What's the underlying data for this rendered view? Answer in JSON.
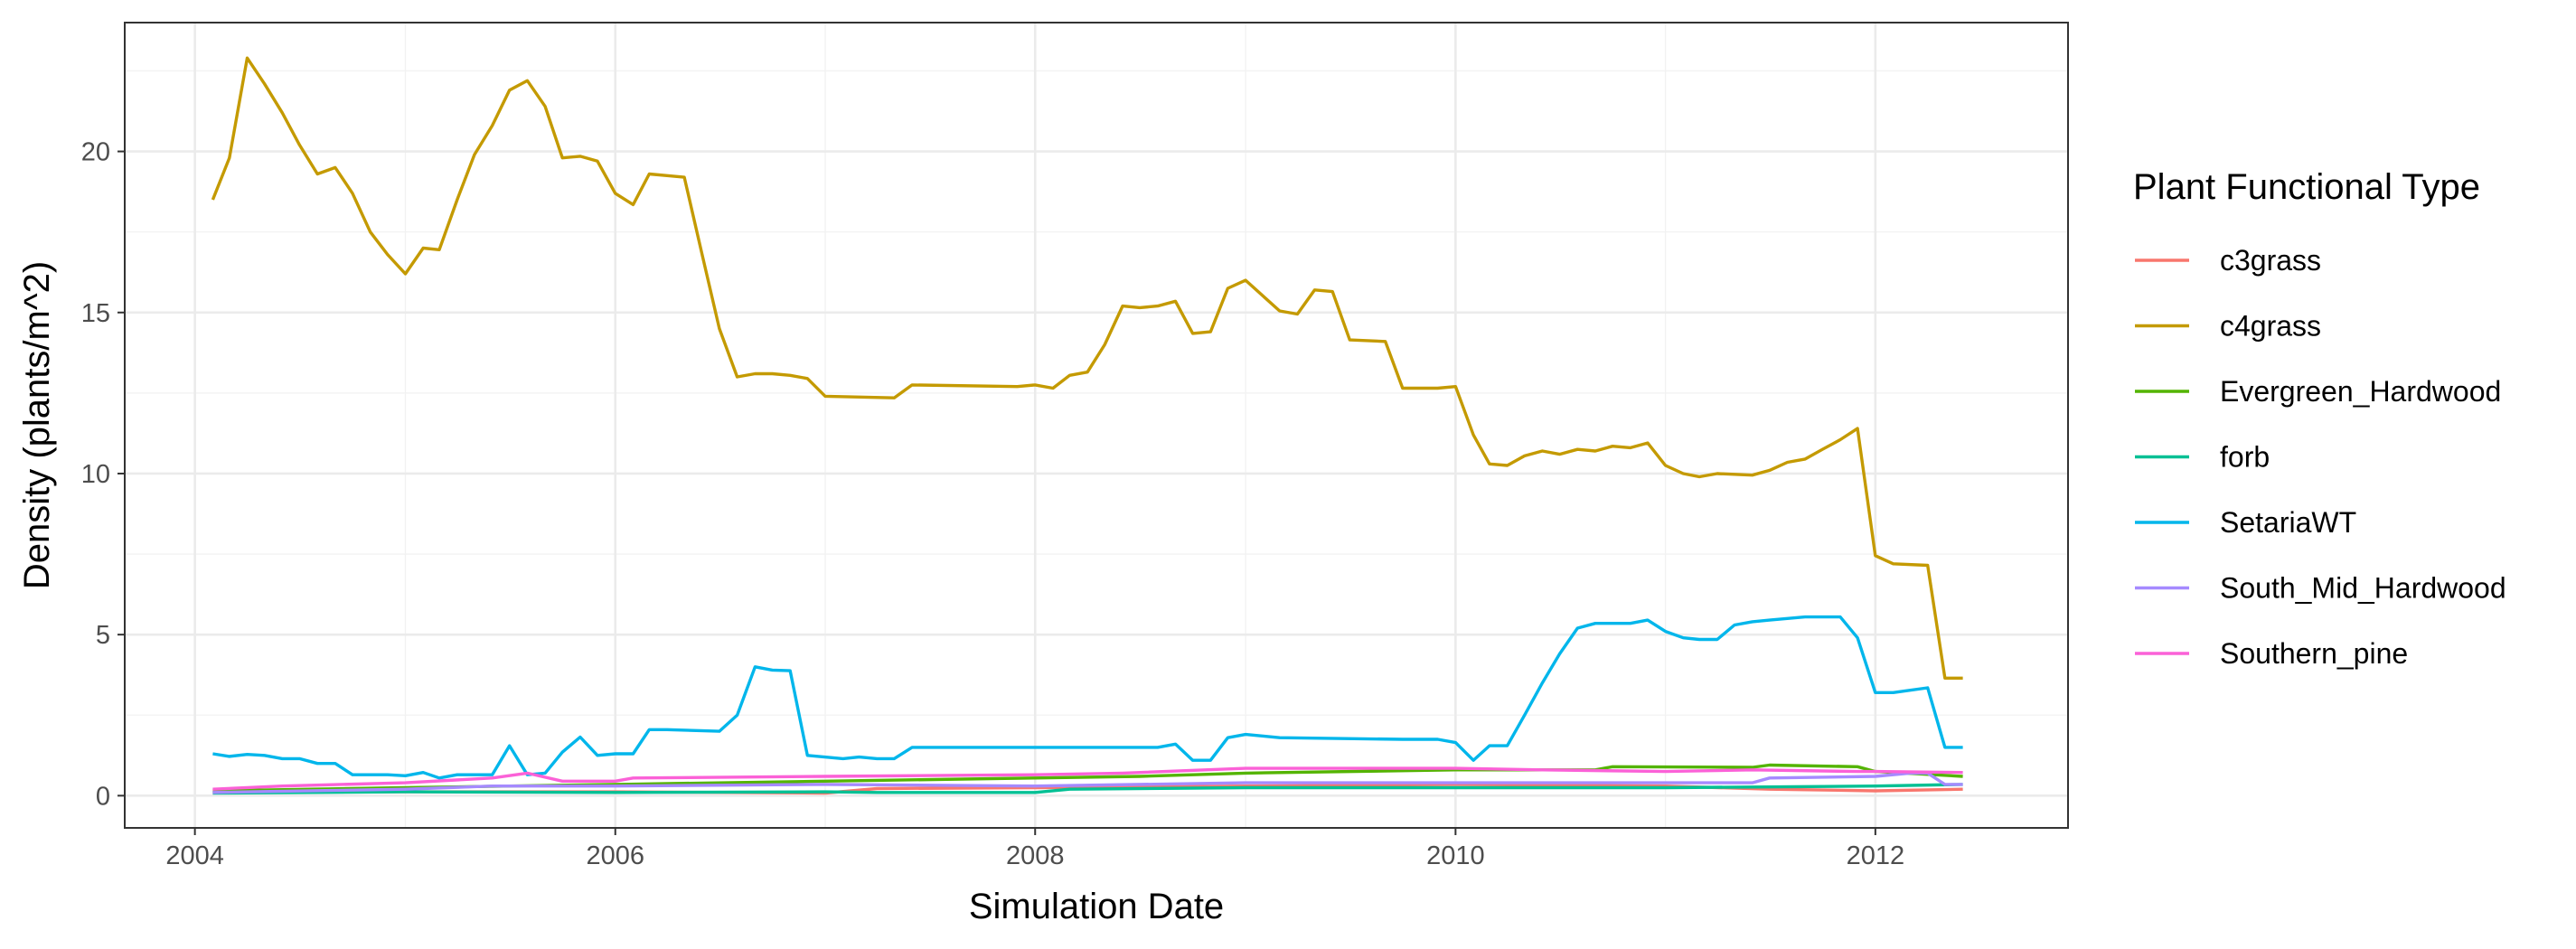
{
  "chart_data": {
    "type": "line",
    "xlabel": "Simulation Date",
    "ylabel": "Density (plants/m^2)",
    "x_ticks": [
      "2004",
      "2006",
      "2008",
      "2010",
      "2012"
    ],
    "y_ticks": [
      "0",
      "5",
      "10",
      "15",
      "20"
    ],
    "xlim": [
      "2003-09-01",
      "2012-12-01"
    ],
    "ylim": [
      -1.0,
      24.0
    ],
    "grid": true,
    "legend_position": "right",
    "legend_title": "Plant Functional Type",
    "series": [
      {
        "name": "c3grass",
        "color": "#F8766D",
        "points": [
          [
            "2004-02-01",
            0.1
          ],
          [
            "2005-01-01",
            0.12
          ],
          [
            "2006-01-01",
            0.12
          ],
          [
            "2007-01-01",
            0.08
          ],
          [
            "2007-04-01",
            0.22
          ],
          [
            "2008-01-01",
            0.25
          ],
          [
            "2009-01-01",
            0.3
          ],
          [
            "2010-01-01",
            0.35
          ],
          [
            "2011-01-01",
            0.3
          ],
          [
            "2011-07-01",
            0.2
          ],
          [
            "2012-01-01",
            0.15
          ],
          [
            "2012-06-01",
            0.2
          ]
        ]
      },
      {
        "name": "c4grass",
        "color": "#C49A00",
        "points": [
          [
            "2004-02-01",
            18.5
          ],
          [
            "2004-03-01",
            19.8
          ],
          [
            "2004-04-01",
            22.9
          ],
          [
            "2004-05-01",
            22.1
          ],
          [
            "2004-06-01",
            21.2
          ],
          [
            "2004-07-01",
            20.2
          ],
          [
            "2004-08-01",
            19.3
          ],
          [
            "2004-09-01",
            19.5
          ],
          [
            "2004-10-01",
            18.7
          ],
          [
            "2004-11-01",
            17.5
          ],
          [
            "2004-12-01",
            16.8
          ],
          [
            "2005-01-01",
            16.2
          ],
          [
            "2005-02-01",
            17.0
          ],
          [
            "2005-03-01",
            16.95
          ],
          [
            "2005-04-01",
            18.5
          ],
          [
            "2005-05-01",
            19.9
          ],
          [
            "2005-06-01",
            20.8
          ],
          [
            "2005-07-01",
            21.9
          ],
          [
            "2005-08-01",
            22.2
          ],
          [
            "2005-09-01",
            21.4
          ],
          [
            "2005-10-01",
            19.8
          ],
          [
            "2005-11-01",
            19.85
          ],
          [
            "2005-12-01",
            19.7
          ],
          [
            "2006-01-01",
            18.7
          ],
          [
            "2006-02-01",
            18.35
          ],
          [
            "2006-03-01",
            19.3
          ],
          [
            "2006-04-01",
            19.25
          ],
          [
            "2006-05-01",
            19.2
          ],
          [
            "2006-06-01",
            16.8
          ],
          [
            "2006-07-01",
            14.5
          ],
          [
            "2006-08-01",
            13.0
          ],
          [
            "2006-09-01",
            13.1
          ],
          [
            "2006-10-01",
            13.1
          ],
          [
            "2006-11-01",
            13.05
          ],
          [
            "2006-12-01",
            12.95
          ],
          [
            "2007-01-01",
            12.4
          ],
          [
            "2007-05-01",
            12.35
          ],
          [
            "2007-06-01",
            12.75
          ],
          [
            "2007-12-01",
            12.7
          ],
          [
            "2008-01-01",
            12.75
          ],
          [
            "2008-02-01",
            12.65
          ],
          [
            "2008-03-01",
            13.05
          ],
          [
            "2008-04-01",
            13.15
          ],
          [
            "2008-05-01",
            14.0
          ],
          [
            "2008-06-01",
            15.2
          ],
          [
            "2008-07-01",
            15.15
          ],
          [
            "2008-08-01",
            15.2
          ],
          [
            "2008-09-01",
            15.35
          ],
          [
            "2008-10-01",
            14.35
          ],
          [
            "2008-11-01",
            14.4
          ],
          [
            "2008-12-01",
            15.75
          ],
          [
            "2009-01-01",
            16.0
          ],
          [
            "2009-02-01",
            15.5
          ],
          [
            "2009-03-01",
            15.05
          ],
          [
            "2009-04-01",
            14.95
          ],
          [
            "2009-05-01",
            15.7
          ],
          [
            "2009-06-01",
            15.65
          ],
          [
            "2009-07-01",
            14.15
          ],
          [
            "2009-09-01",
            14.1
          ],
          [
            "2009-10-01",
            12.65
          ],
          [
            "2009-12-01",
            12.65
          ],
          [
            "2010-01-01",
            12.7
          ],
          [
            "2010-02-01",
            11.2
          ],
          [
            "2010-03-01",
            10.3
          ],
          [
            "2010-04-01",
            10.25
          ],
          [
            "2010-05-01",
            10.55
          ],
          [
            "2010-06-01",
            10.7
          ],
          [
            "2010-07-01",
            10.6
          ],
          [
            "2010-08-01",
            10.75
          ],
          [
            "2010-09-01",
            10.7
          ],
          [
            "2010-10-01",
            10.85
          ],
          [
            "2010-11-01",
            10.8
          ],
          [
            "2010-12-01",
            10.95
          ],
          [
            "2011-01-01",
            10.25
          ],
          [
            "2011-02-01",
            10.0
          ],
          [
            "2011-03-01",
            9.9
          ],
          [
            "2011-04-01",
            10.0
          ],
          [
            "2011-06-01",
            9.95
          ],
          [
            "2011-07-01",
            10.1
          ],
          [
            "2011-08-01",
            10.35
          ],
          [
            "2011-09-01",
            10.45
          ],
          [
            "2011-10-01",
            10.75
          ],
          [
            "2011-11-01",
            11.05
          ],
          [
            "2011-12-01",
            11.4
          ],
          [
            "2012-01-01",
            7.45
          ],
          [
            "2012-02-01",
            7.2
          ],
          [
            "2012-04-01",
            7.15
          ],
          [
            "2012-05-01",
            3.65
          ],
          [
            "2012-06-01",
            3.65
          ]
        ]
      },
      {
        "name": "Evergreen_Hardwood",
        "color": "#53B400",
        "points": [
          [
            "2004-02-01",
            0.15
          ],
          [
            "2005-01-01",
            0.25
          ],
          [
            "2006-01-01",
            0.35
          ],
          [
            "2007-01-01",
            0.45
          ],
          [
            "2008-01-01",
            0.55
          ],
          [
            "2008-07-01",
            0.6
          ],
          [
            "2009-01-01",
            0.7
          ],
          [
            "2010-01-01",
            0.8
          ],
          [
            "2010-09-01",
            0.8
          ],
          [
            "2010-10-01",
            0.9
          ],
          [
            "2011-06-01",
            0.88
          ],
          [
            "2011-07-01",
            0.95
          ],
          [
            "2011-12-01",
            0.9
          ],
          [
            "2012-01-01",
            0.75
          ],
          [
            "2012-06-01",
            0.6
          ]
        ]
      },
      {
        "name": "forb",
        "color": "#00C094",
        "points": [
          [
            "2004-02-01",
            0.08
          ],
          [
            "2005-01-01",
            0.12
          ],
          [
            "2006-01-01",
            0.1
          ],
          [
            "2007-01-01",
            0.12
          ],
          [
            "2007-04-01",
            0.1
          ],
          [
            "2008-01-01",
            0.1
          ],
          [
            "2008-03-01",
            0.2
          ],
          [
            "2009-01-01",
            0.25
          ],
          [
            "2010-01-01",
            0.25
          ],
          [
            "2011-01-01",
            0.25
          ],
          [
            "2012-01-01",
            0.3
          ],
          [
            "2012-06-01",
            0.35
          ]
        ]
      },
      {
        "name": "SetariaWT",
        "color": "#00B6EB",
        "points": [
          [
            "2004-02-01",
            1.3
          ],
          [
            "2004-03-01",
            1.22
          ],
          [
            "2004-04-01",
            1.28
          ],
          [
            "2004-05-01",
            1.25
          ],
          [
            "2004-06-01",
            1.15
          ],
          [
            "2004-07-01",
            1.15
          ],
          [
            "2004-08-01",
            1.0
          ],
          [
            "2004-09-01",
            1.0
          ],
          [
            "2004-10-01",
            0.65
          ],
          [
            "2004-12-01",
            0.65
          ],
          [
            "2005-01-01",
            0.62
          ],
          [
            "2005-02-01",
            0.72
          ],
          [
            "2005-03-01",
            0.55
          ],
          [
            "2005-04-01",
            0.65
          ],
          [
            "2005-05-01",
            0.65
          ],
          [
            "2005-06-01",
            0.65
          ],
          [
            "2005-07-01",
            1.55
          ],
          [
            "2005-08-01",
            0.65
          ],
          [
            "2005-09-01",
            0.7
          ],
          [
            "2005-10-01",
            1.35
          ],
          [
            "2005-11-01",
            1.82
          ],
          [
            "2005-12-01",
            1.25
          ],
          [
            "2006-01-01",
            1.3
          ],
          [
            "2006-02-01",
            1.3
          ],
          [
            "2006-03-01",
            2.05
          ],
          [
            "2006-04-01",
            2.05
          ],
          [
            "2006-07-01",
            2.0
          ],
          [
            "2006-08-01",
            2.5
          ],
          [
            "2006-09-01",
            4.0
          ],
          [
            "2006-10-01",
            3.9
          ],
          [
            "2006-11-01",
            3.88
          ],
          [
            "2006-12-01",
            1.25
          ],
          [
            "2007-02-01",
            1.15
          ],
          [
            "2007-03-01",
            1.2
          ],
          [
            "2007-04-01",
            1.15
          ],
          [
            "2007-05-01",
            1.15
          ],
          [
            "2007-06-01",
            1.5
          ],
          [
            "2008-01-01",
            1.5
          ],
          [
            "2008-08-01",
            1.5
          ],
          [
            "2008-09-01",
            1.6
          ],
          [
            "2008-10-01",
            1.1
          ],
          [
            "2008-11-01",
            1.1
          ],
          [
            "2008-12-01",
            1.8
          ],
          [
            "2009-01-01",
            1.9
          ],
          [
            "2009-02-01",
            1.85
          ],
          [
            "2009-03-01",
            1.8
          ],
          [
            "2009-10-01",
            1.75
          ],
          [
            "2009-12-01",
            1.75
          ],
          [
            "2010-01-01",
            1.65
          ],
          [
            "2010-02-01",
            1.1
          ],
          [
            "2010-03-01",
            1.55
          ],
          [
            "2010-04-01",
            1.55
          ],
          [
            "2010-05-01",
            2.5
          ],
          [
            "2010-06-01",
            3.5
          ],
          [
            "2010-07-01",
            4.4
          ],
          [
            "2010-08-01",
            5.2
          ],
          [
            "2010-09-01",
            5.35
          ],
          [
            "2010-10-01",
            5.35
          ],
          [
            "2010-11-01",
            5.35
          ],
          [
            "2010-12-01",
            5.45
          ],
          [
            "2011-01-01",
            5.1
          ],
          [
            "2011-02-01",
            4.9
          ],
          [
            "2011-03-01",
            4.85
          ],
          [
            "2011-04-01",
            4.85
          ],
          [
            "2011-05-01",
            5.3
          ],
          [
            "2011-06-01",
            5.4
          ],
          [
            "2011-07-01",
            5.45
          ],
          [
            "2011-08-01",
            5.5
          ],
          [
            "2011-09-01",
            5.55
          ],
          [
            "2011-11-01",
            5.55
          ],
          [
            "2011-12-01",
            4.9
          ],
          [
            "2012-01-01",
            3.2
          ],
          [
            "2012-02-01",
            3.2
          ],
          [
            "2012-04-01",
            3.35
          ],
          [
            "2012-05-01",
            1.5
          ],
          [
            "2012-06-01",
            1.5
          ]
        ]
      },
      {
        "name": "South_Mid_Hardwood",
        "color": "#A58AFF",
        "points": [
          [
            "2004-02-01",
            0.1
          ],
          [
            "2005-01-01",
            0.2
          ],
          [
            "2005-06-01",
            0.3
          ],
          [
            "2006-01-01",
            0.3
          ],
          [
            "2007-01-01",
            0.35
          ],
          [
            "2008-01-01",
            0.3
          ],
          [
            "2009-01-01",
            0.4
          ],
          [
            "2010-01-01",
            0.4
          ],
          [
            "2011-01-01",
            0.4
          ],
          [
            "2011-06-01",
            0.4
          ],
          [
            "2011-07-01",
            0.55
          ],
          [
            "2012-01-01",
            0.6
          ],
          [
            "2012-03-01",
            0.7
          ],
          [
            "2012-04-01",
            0.7
          ],
          [
            "2012-05-01",
            0.35
          ],
          [
            "2012-06-01",
            0.35
          ]
        ]
      },
      {
        "name": "Southern_pine",
        "color": "#FB61D7",
        "points": [
          [
            "2004-02-01",
            0.2
          ],
          [
            "2004-06-01",
            0.3
          ],
          [
            "2005-01-01",
            0.4
          ],
          [
            "2005-06-01",
            0.55
          ],
          [
            "2005-08-01",
            0.7
          ],
          [
            "2005-10-01",
            0.45
          ],
          [
            "2006-01-01",
            0.45
          ],
          [
            "2006-02-01",
            0.55
          ],
          [
            "2007-01-01",
            0.6
          ],
          [
            "2008-01-01",
            0.65
          ],
          [
            "2008-06-01",
            0.7
          ],
          [
            "2009-01-01",
            0.85
          ],
          [
            "2010-01-01",
            0.85
          ],
          [
            "2010-06-01",
            0.8
          ],
          [
            "2011-01-01",
            0.75
          ],
          [
            "2011-06-01",
            0.8
          ],
          [
            "2011-12-01",
            0.75
          ],
          [
            "2012-01-01",
            0.75
          ],
          [
            "2012-06-01",
            0.72
          ]
        ]
      }
    ]
  }
}
